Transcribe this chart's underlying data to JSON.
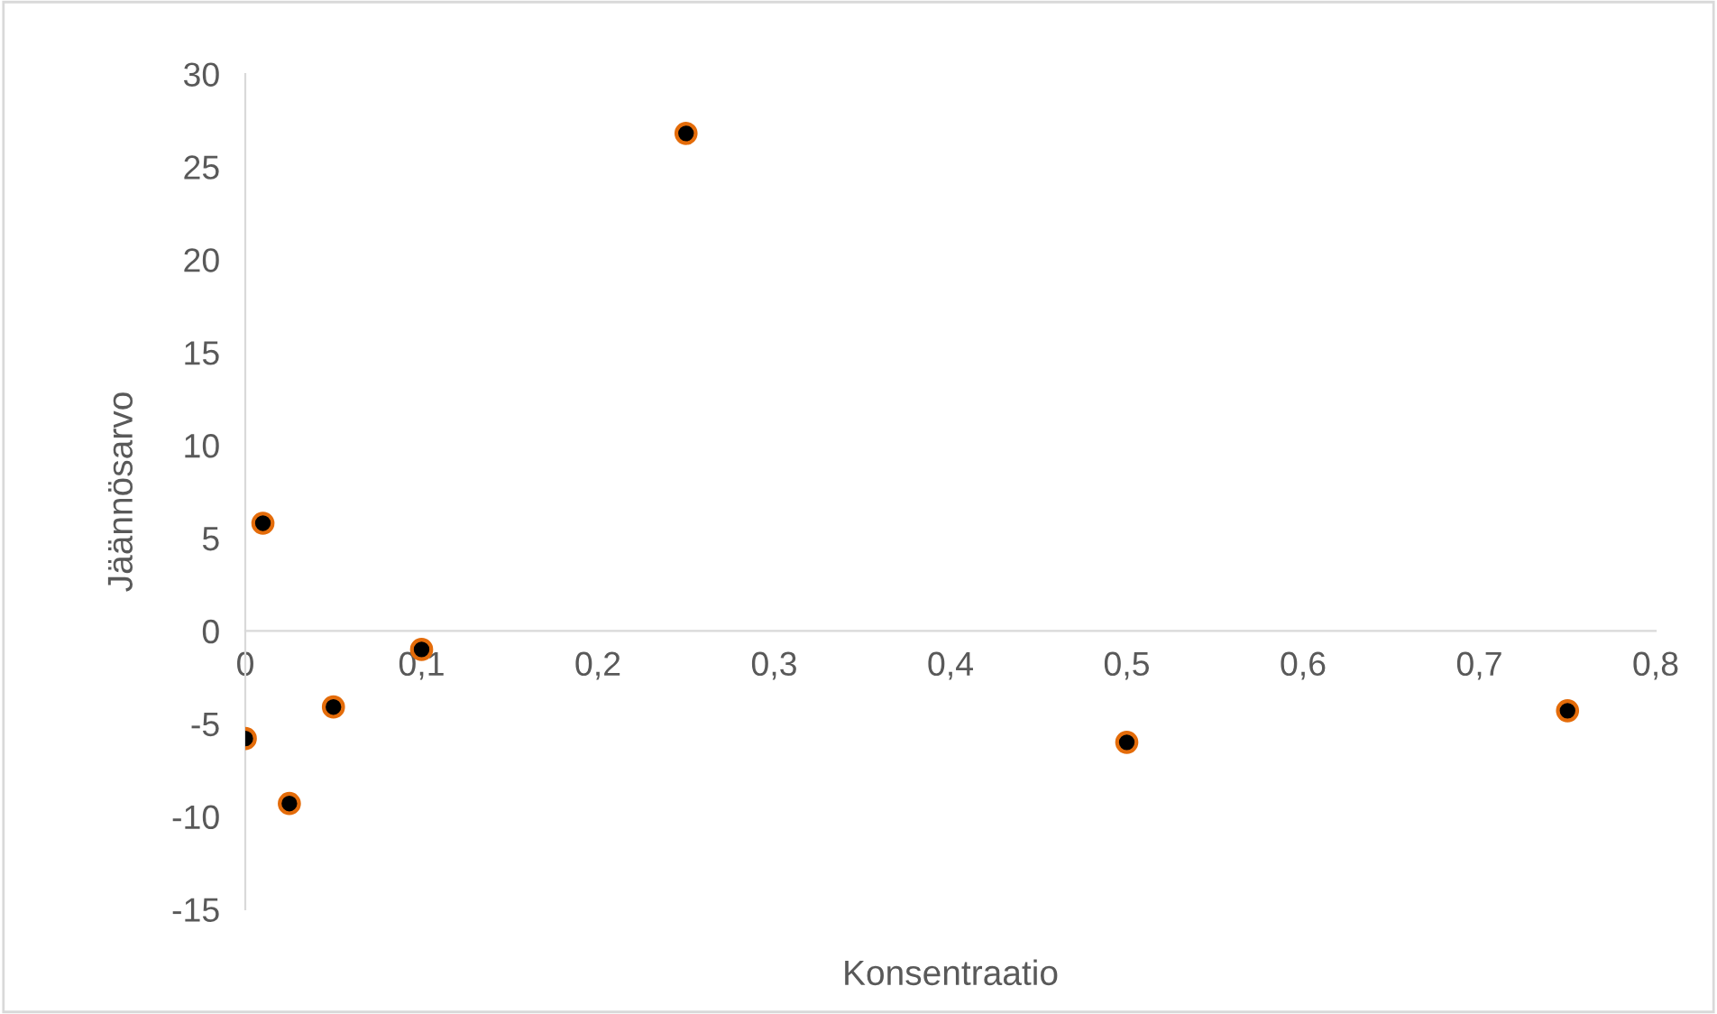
{
  "chart_data": {
    "type": "scatter",
    "xlabel": "Konsentraatio",
    "ylabel": "Jäännösarvo",
    "x": [
      0,
      0.01,
      0.025,
      0.05,
      0.1,
      0.25,
      0.5,
      0.75
    ],
    "series": [
      {
        "color": "#000000",
        "values": [
          -5.8,
          5.8,
          -9.3,
          -4.1,
          -1.0,
          26.8,
          -6.0,
          -4.3
        ]
      }
    ],
    "xlim": [
      0,
      0.8
    ],
    "ylim": [
      -15,
      30
    ],
    "xticks": [
      {
        "value": 0,
        "label": "0"
      },
      {
        "value": 0.1,
        "label": "0,1"
      },
      {
        "value": 0.2,
        "label": "0,2"
      },
      {
        "value": 0.3,
        "label": "0,3"
      },
      {
        "value": 0.4,
        "label": "0,4"
      },
      {
        "value": 0.5,
        "label": "0,5"
      },
      {
        "value": 0.6,
        "label": "0,6"
      },
      {
        "value": 0.7,
        "label": "0,7"
      },
      {
        "value": 0.8,
        "label": "0,8"
      }
    ],
    "yticks": [
      -15,
      -10,
      -5,
      0,
      5,
      10,
      15,
      20,
      25,
      30
    ],
    "grid": false,
    "marker": "circle"
  }
}
